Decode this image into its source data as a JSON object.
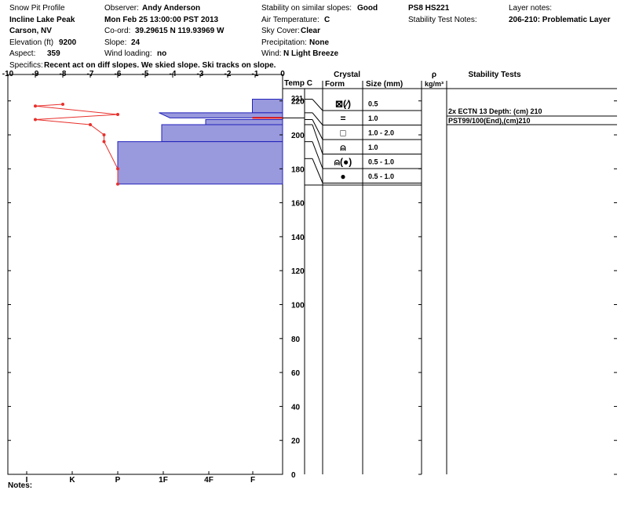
{
  "header": {
    "col1": {
      "title": "Snow Pit Profile",
      "location": "Incline Lake Peak",
      "region": "Carson, NV",
      "elevation_label": "Elevation (ft)",
      "elevation": "9200",
      "aspect_label": "Aspect:",
      "aspect": "359"
    },
    "col2": {
      "observer_label": "Observer:",
      "observer": "Andy Anderson",
      "date": "Mon Feb 25 13:00:00 PST 2013",
      "coord_label": "Co-ord:",
      "coord": "39.29615 N 119.93969 W",
      "slope_label": "Slope:",
      "slope": "24",
      "wind_loading_label": "Wind loading:",
      "wind_loading": "no"
    },
    "col3": {
      "stability_label": "Stability on similar slopes:",
      "stability": "Good",
      "air_temp_label": "Air Temperature:",
      "air_temp": "C",
      "sky_label": "Sky Cover:",
      "sky": "Clear",
      "precip_label": "Precipitation:",
      "precip": "None",
      "wind_label": "Wind:",
      "wind": "N Light Breeze"
    },
    "col4": {
      "ps": "PS8 HS221",
      "stability_notes_label": "Stability Test Notes:"
    },
    "col5": {
      "layer_notes_label": "Layer notes:",
      "layer_note": "206-210: Problematic Layer"
    },
    "specifics_label": "Specifics:",
    "specifics": "Recent act on diff slopes. We skied slope. Ski tracks on slope."
  },
  "columns": {
    "temp": "Temp C",
    "crystal": "Crystal",
    "form": "Form",
    "size": "Size (mm)",
    "rho": "ρ",
    "rho_unit": "kg/m³",
    "stability_tests": "Stability Tests"
  },
  "layers": [
    {
      "form": "⊠(⁄)",
      "size": "0.5"
    },
    {
      "form": "=",
      "size": "1.0"
    },
    {
      "form": "□",
      "size": "1.0 - 2.0"
    },
    {
      "form": "⍝",
      "size": "1.0"
    },
    {
      "form": "⍝(●)",
      "size": "0.5 - 1.0"
    },
    {
      "form": "●",
      "size": "0.5 - 1.0"
    }
  ],
  "stability_tests": [
    "2x ECTN 13   Depth: (cm) 210",
    "PST99/100(End),(cm)210"
  ],
  "notes_label": "Notes:",
  "chart_data": {
    "type": "line",
    "title": "",
    "temp_axis": {
      "label": "",
      "min": -10,
      "max": 0,
      "ticks": [
        "-10",
        "-9",
        "-8",
        "-7",
        "-6",
        "-5",
        "-4",
        "-3",
        "-2",
        "-1",
        "0"
      ]
    },
    "hardness_axis": {
      "ticks": [
        "I",
        "K",
        "P",
        "1F",
        "4F",
        "F"
      ]
    },
    "height_axis": {
      "label": "",
      "min": 0,
      "max": 221,
      "ticks": [
        "0",
        "20",
        "40",
        "60",
        "80",
        "100",
        "120",
        "140",
        "160",
        "180",
        "200",
        "220"
      ],
      "top_label": "221"
    },
    "temperature_profile": [
      {
        "temp": -8.0,
        "height": 218
      },
      {
        "temp": -9.0,
        "height": 217
      },
      {
        "temp": -6.0,
        "height": 212
      },
      {
        "temp": -9.0,
        "height": 209
      },
      {
        "temp": -7.0,
        "height": 206
      },
      {
        "temp": -6.5,
        "height": 200
      },
      {
        "temp": -6.5,
        "height": 196
      },
      {
        "temp": -6.0,
        "height": 180
      },
      {
        "temp": -6.0,
        "height": 171
      }
    ],
    "hardness_profile": [
      {
        "top": 221,
        "bottom": 213,
        "hardness_temp": -1.1
      },
      {
        "top": 213,
        "bottom": 210,
        "hardness_temp": -4.5,
        "wedge": true
      },
      {
        "top": 209,
        "bottom": 206,
        "hardness_temp": -2.8
      },
      {
        "top": 206,
        "bottom": 196,
        "hardness_temp": -4.4
      },
      {
        "top": 196,
        "bottom": 171,
        "hardness_temp": -6.0
      }
    ],
    "critical_layer_height": 210,
    "colors": {
      "temperature": "#e8302c",
      "hardness_fill": "#9999dd",
      "hardness_edge": "#2222bb"
    },
    "grid": false
  }
}
